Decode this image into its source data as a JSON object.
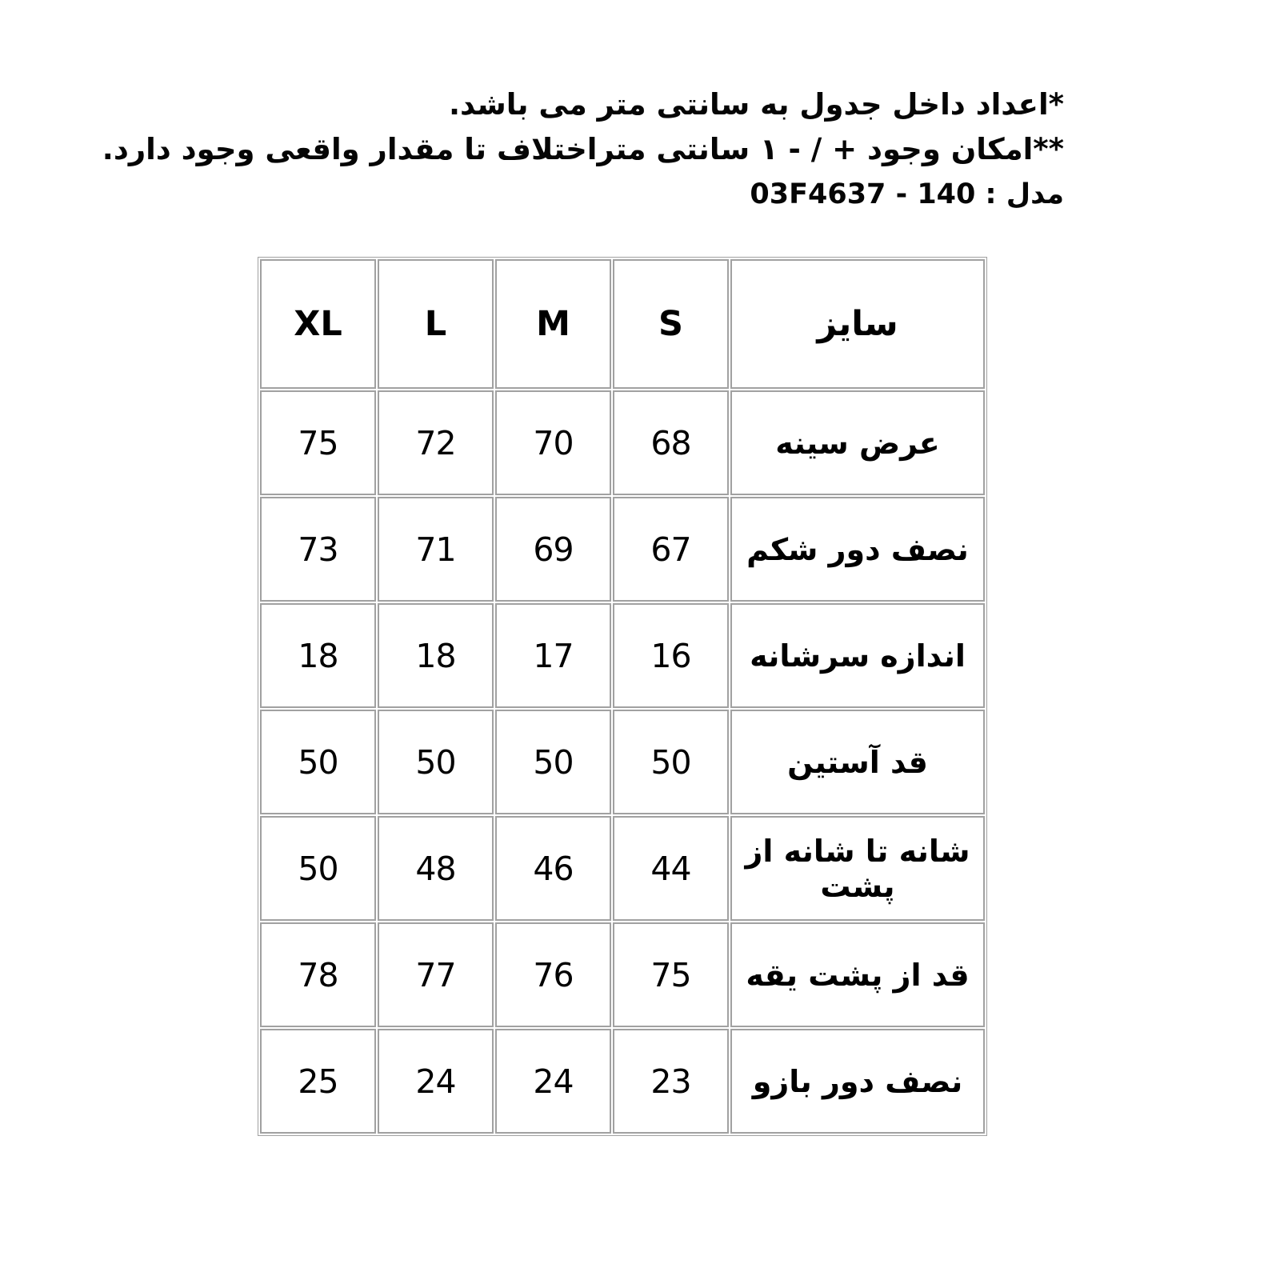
{
  "page": {
    "background": "#ffffff",
    "text_color": "#000000",
    "table_border_color": "#a1a1a1"
  },
  "notes": {
    "line1": "*اعداد داخل جدول به سانتی متر می باشد.",
    "line2": "**امکان وجود + / - ۱ سانتی متراختلاف تا مقدار واقعی وجود دارد.",
    "line3": "مدل : 140 - 03F4637"
  },
  "size_table": {
    "headers": {
      "size": "سایز",
      "s": "S",
      "m": "M",
      "l": "L",
      "xl": "XL"
    },
    "rows": [
      {
        "label": "عرض سینه",
        "s": "68",
        "m": "70",
        "l": "72",
        "xl": "75"
      },
      {
        "label": "نصف دور شکم",
        "s": "67",
        "m": "69",
        "l": "71",
        "xl": "73"
      },
      {
        "label": "اندازه سرشانه",
        "s": "16",
        "m": "17",
        "l": "18",
        "xl": "18"
      },
      {
        "label": "قد آستین",
        "s": "50",
        "m": "50",
        "l": "50",
        "xl": "50"
      },
      {
        "label": "شانه تا شانه از پشت",
        "s": "44",
        "m": "46",
        "l": "48",
        "xl": "50"
      },
      {
        "label": "قد از پشت یقه",
        "s": "75",
        "m": "76",
        "l": "77",
        "xl": "78"
      },
      {
        "label": "نصف دور بازو",
        "s": "23",
        "m": "24",
        "l": "24",
        "xl": "25"
      }
    ]
  }
}
